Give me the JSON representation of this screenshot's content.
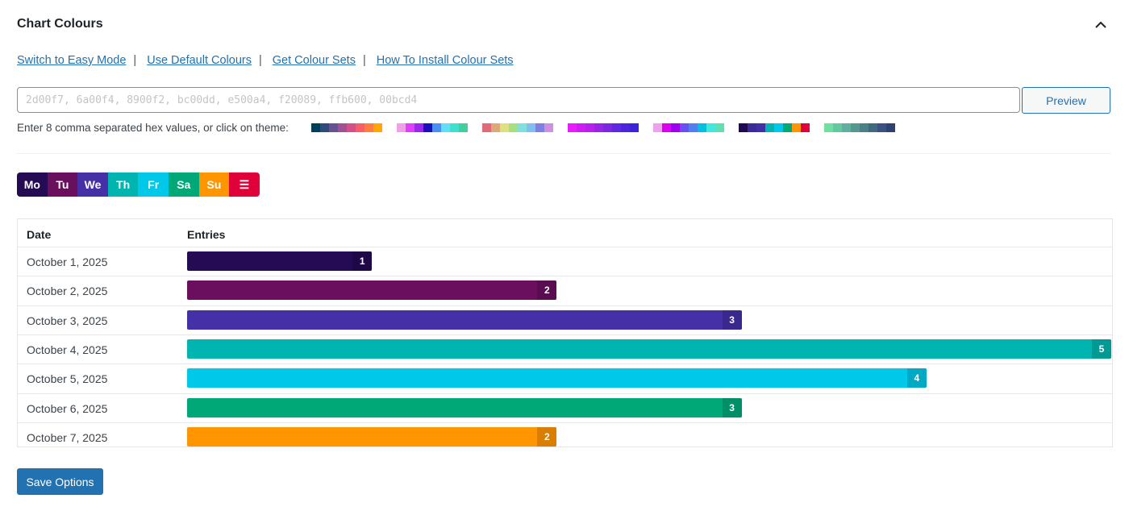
{
  "header": {
    "title": "Chart Colours",
    "collapse_icon": "chevron-up-icon"
  },
  "links": [
    "Switch to Easy Mode",
    "Use Default Colours",
    "Get Colour Sets",
    "How To Install Colour Sets"
  ],
  "hex_input": {
    "value": "",
    "placeholder": "2d00f7, 6a00f4, 8900f2, bc00dd, e500a4, f20089, ffb600, 00bcd4"
  },
  "preview_label": "Preview",
  "hint": "Enter 8 comma separated hex values, or click on theme:",
  "themes": [
    [
      "#003f5c",
      "#2f4b7c",
      "#665191",
      "#a05195",
      "#d45087",
      "#f95d6a",
      "#ff7c43",
      "#ffa600"
    ],
    [
      "#f0a0e8",
      "#e040fb",
      "#9c27f0",
      "#1a10c0",
      "#4a90f0",
      "#60e0f8",
      "#40e0d0",
      "#40d0a0"
    ],
    [
      "#e06a78",
      "#e0a878",
      "#e0e080",
      "#a8e080",
      "#80e0e0",
      "#80c0f0",
      "#8080e0",
      "#d090e0"
    ],
    [
      "#e81cff",
      "#d01cf4",
      "#b820ec",
      "#9a24e6",
      "#7c28e2",
      "#6028e0",
      "#4c26de",
      "#3c24dc"
    ],
    [
      "#f0a0f0",
      "#e000f0",
      "#a000f0",
      "#6a50f0",
      "#5080f0",
      "#00c0e0",
      "#40e8e0",
      "#60e0b0"
    ],
    [
      "#1f0a4f",
      "#3a2a9a",
      "#4030a8",
      "#00b5b0",
      "#00c8e8",
      "#00a878",
      "#ff9500",
      "#e0003a"
    ],
    [
      "#70e0a0",
      "#64c8a0",
      "#60b0a0",
      "#549890",
      "#4a8088",
      "#406880",
      "#3a5280",
      "#304070"
    ]
  ],
  "days": [
    {
      "label": "Mo",
      "color": "#240b53"
    },
    {
      "label": "Tu",
      "color": "#6a0f5e"
    },
    {
      "label": "We",
      "color": "#4530a8"
    },
    {
      "label": "Th",
      "color": "#00b5b0"
    },
    {
      "label": "Fr",
      "color": "#00c8e8"
    },
    {
      "label": "Sa",
      "color": "#00a878"
    },
    {
      "label": "Su",
      "color": "#ff9500"
    },
    {
      "label": "☰",
      "color": "#e0003a"
    }
  ],
  "chart_data": {
    "type": "bar",
    "columns": [
      "Date",
      "Entries"
    ],
    "categories": [
      "October 1, 2025",
      "October 2, 2025",
      "October 3, 2025",
      "October 4, 2025",
      "October 5, 2025",
      "October 6, 2025",
      "October 7, 2025"
    ],
    "values": [
      1,
      2,
      3,
      5,
      4,
      3,
      2
    ],
    "colors": [
      "#240b53",
      "#6a0f5e",
      "#4530a8",
      "#00b5b0",
      "#00c8e8",
      "#00a878",
      "#ff9500"
    ],
    "xlim": [
      0,
      5
    ]
  },
  "save_label": "Save Options"
}
